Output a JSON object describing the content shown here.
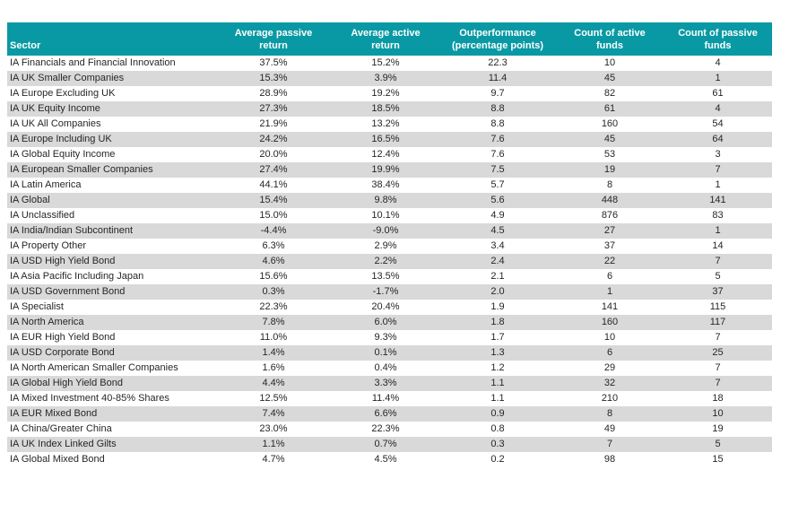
{
  "colors": {
    "header_bg": "#0999A4",
    "header_text": "#FFFFFF",
    "row_stripe": "#D9D9D9",
    "row_white": "#FFFFFF",
    "body_text": "#262626"
  },
  "table": {
    "header": [
      {
        "key": "sector",
        "line1": "",
        "line2": "Sector",
        "align": "left"
      },
      {
        "key": "avg-passive-return",
        "line1": "Average passive",
        "line2": "return",
        "align": "center"
      },
      {
        "key": "avg-active-return",
        "line1": "Average active",
        "line2": "return",
        "align": "center"
      },
      {
        "key": "outperformance",
        "line1": "Outperformance",
        "line2": "(percentage points)",
        "align": "center"
      },
      {
        "key": "count-active-funds",
        "line1": "Count of active",
        "line2": "funds",
        "align": "center"
      },
      {
        "key": "count-passive-funds",
        "line1": "Count of passive",
        "line2": "funds",
        "align": "center"
      }
    ],
    "rows": [
      [
        "IA Financials and Financial Innovation",
        "37.5%",
        "15.2%",
        "22.3",
        "10",
        "4"
      ],
      [
        "IA UK Smaller Companies",
        "15.3%",
        "3.9%",
        "11.4",
        "45",
        "1"
      ],
      [
        "IA Europe Excluding UK",
        "28.9%",
        "19.2%",
        "9.7",
        "82",
        "61"
      ],
      [
        "IA UK Equity Income",
        "27.3%",
        "18.5%",
        "8.8",
        "61",
        "4"
      ],
      [
        "IA UK All Companies",
        "21.9%",
        "13.2%",
        "8.8",
        "160",
        "54"
      ],
      [
        "IA Europe Including UK",
        "24.2%",
        "16.5%",
        "7.6",
        "45",
        "64"
      ],
      [
        "IA Global Equity Income",
        "20.0%",
        "12.4%",
        "7.6",
        "53",
        "3"
      ],
      [
        "IA European Smaller Companies",
        "27.4%",
        "19.9%",
        "7.5",
        "19",
        "7"
      ],
      [
        "IA Latin America",
        "44.1%",
        "38.4%",
        "5.7",
        "8",
        "1"
      ],
      [
        "IA Global",
        "15.4%",
        "9.8%",
        "5.6",
        "448",
        "141"
      ],
      [
        "IA Unclassified",
        "15.0%",
        "10.1%",
        "4.9",
        "876",
        "83"
      ],
      [
        "IA India/Indian Subcontinent",
        "-4.4%",
        "-9.0%",
        "4.5",
        "27",
        "1"
      ],
      [
        "IA Property Other",
        "6.3%",
        "2.9%",
        "3.4",
        "37",
        "14"
      ],
      [
        "IA USD High Yield Bond",
        "4.6%",
        "2.2%",
        "2.4",
        "22",
        "7"
      ],
      [
        "IA Asia Pacific Including Japan",
        "15.6%",
        "13.5%",
        "2.1",
        "6",
        "5"
      ],
      [
        "IA USD Government Bond",
        "0.3%",
        "-1.7%",
        "2.0",
        "1",
        "37"
      ],
      [
        "IA Specialist",
        "22.3%",
        "20.4%",
        "1.9",
        "141",
        "115"
      ],
      [
        "IA North America",
        "7.8%",
        "6.0%",
        "1.8",
        "160",
        "117"
      ],
      [
        "IA EUR High Yield Bond",
        "11.0%",
        "9.3%",
        "1.7",
        "10",
        "7"
      ],
      [
        "IA USD Corporate Bond",
        "1.4%",
        "0.1%",
        "1.3",
        "6",
        "25"
      ],
      [
        "IA North American Smaller Companies",
        "1.6%",
        "0.4%",
        "1.2",
        "29",
        "7"
      ],
      [
        "IA Global High Yield Bond",
        "4.4%",
        "3.3%",
        "1.1",
        "32",
        "7"
      ],
      [
        "IA Mixed Investment 40-85% Shares",
        "12.5%",
        "11.4%",
        "1.1",
        "210",
        "18"
      ],
      [
        "IA EUR Mixed Bond",
        "7.4%",
        "6.6%",
        "0.9",
        "8",
        "10"
      ],
      [
        "IA China/Greater China",
        "23.0%",
        "22.3%",
        "0.8",
        "49",
        "19"
      ],
      [
        "IA UK Index Linked Gilts",
        "1.1%",
        "0.7%",
        "0.3",
        "7",
        "5"
      ],
      [
        "IA Global Mixed Bond",
        "4.7%",
        "4.5%",
        "0.2",
        "98",
        "15"
      ]
    ]
  },
  "chart_data": {
    "type": "table",
    "columns": [
      "Sector",
      "Average passive return",
      "Average active return",
      "Outperformance (percentage points)",
      "Count of active funds",
      "Count of passive funds"
    ],
    "units": {
      "average_passive_return": "%",
      "average_active_return": "%",
      "outperformance": "percentage points"
    },
    "rows": [
      [
        "IA Financials and Financial Innovation",
        37.5,
        15.2,
        22.3,
        10,
        4
      ],
      [
        "IA UK Smaller Companies",
        15.3,
        3.9,
        11.4,
        45,
        1
      ],
      [
        "IA Europe Excluding UK",
        28.9,
        19.2,
        9.7,
        82,
        61
      ],
      [
        "IA UK Equity Income",
        27.3,
        18.5,
        8.8,
        61,
        4
      ],
      [
        "IA UK All Companies",
        21.9,
        13.2,
        8.8,
        160,
        54
      ],
      [
        "IA Europe Including UK",
        24.2,
        16.5,
        7.6,
        45,
        64
      ],
      [
        "IA Global Equity Income",
        20.0,
        12.4,
        7.6,
        53,
        3
      ],
      [
        "IA European Smaller Companies",
        27.4,
        19.9,
        7.5,
        19,
        7
      ],
      [
        "IA Latin America",
        44.1,
        38.4,
        5.7,
        8,
        1
      ],
      [
        "IA Global",
        15.4,
        9.8,
        5.6,
        448,
        141
      ],
      [
        "IA Unclassified",
        15.0,
        10.1,
        4.9,
        876,
        83
      ],
      [
        "IA India/Indian Subcontinent",
        -4.4,
        -9.0,
        4.5,
        27,
        1
      ],
      [
        "IA Property Other",
        6.3,
        2.9,
        3.4,
        37,
        14
      ],
      [
        "IA USD High Yield Bond",
        4.6,
        2.2,
        2.4,
        22,
        7
      ],
      [
        "IA Asia Pacific Including Japan",
        15.6,
        13.5,
        2.1,
        6,
        5
      ],
      [
        "IA USD Government Bond",
        0.3,
        -1.7,
        2.0,
        1,
        37
      ],
      [
        "IA Specialist",
        22.3,
        20.4,
        1.9,
        141,
        115
      ],
      [
        "IA North America",
        7.8,
        6.0,
        1.8,
        160,
        117
      ],
      [
        "IA EUR High Yield Bond",
        11.0,
        9.3,
        1.7,
        10,
        7
      ],
      [
        "IA USD Corporate Bond",
        1.4,
        0.1,
        1.3,
        6,
        25
      ],
      [
        "IA North American Smaller Companies",
        1.6,
        0.4,
        1.2,
        29,
        7
      ],
      [
        "IA Global High Yield Bond",
        4.4,
        3.3,
        1.1,
        32,
        7
      ],
      [
        "IA Mixed Investment 40-85% Shares",
        12.5,
        11.4,
        1.1,
        210,
        18
      ],
      [
        "IA EUR Mixed Bond",
        7.4,
        6.6,
        0.9,
        8,
        10
      ],
      [
        "IA China/Greater China",
        23.0,
        22.3,
        0.8,
        49,
        19
      ],
      [
        "IA UK Index Linked Gilts",
        1.1,
        0.7,
        0.3,
        7,
        5
      ],
      [
        "IA Global Mixed Bond",
        4.7,
        4.5,
        0.2,
        98,
        15
      ]
    ]
  }
}
